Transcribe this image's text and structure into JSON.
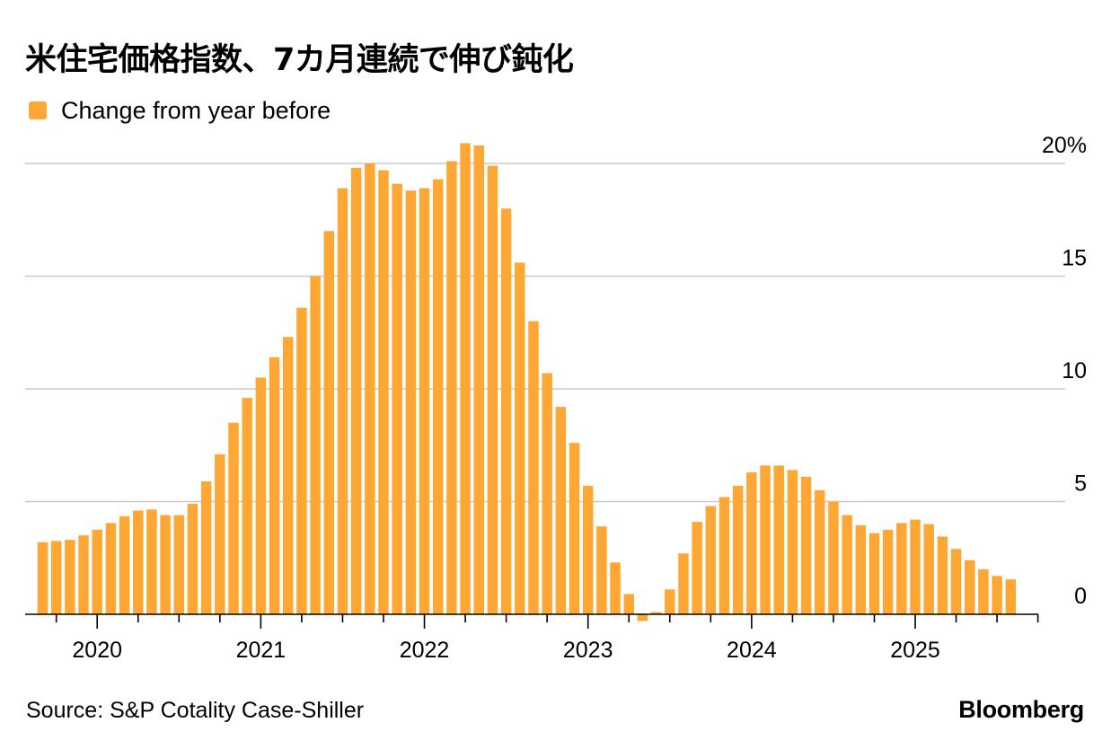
{
  "title": "米住宅価格指数、7カ月連続で伸び鈍化",
  "legend": {
    "label": "Change from year before",
    "color": "#FFA735"
  },
  "footer": {
    "source": "Source: S&P Cotality Case-Shiller",
    "brand": "Bloomberg"
  },
  "chart_data": {
    "type": "bar",
    "series": [
      {
        "name": "Change from year before",
        "color": "#FFA735",
        "values": [
          3.2,
          3.25,
          3.3,
          3.5,
          3.75,
          4.05,
          4.35,
          4.6,
          4.65,
          4.4,
          4.4,
          4.9,
          5.9,
          7.1,
          8.5,
          9.6,
          10.5,
          11.4,
          12.3,
          13.6,
          15.0,
          17.0,
          18.9,
          19.8,
          20.0,
          19.7,
          19.1,
          18.8,
          18.9,
          19.3,
          20.1,
          20.9,
          20.8,
          19.9,
          18.0,
          15.6,
          13.0,
          10.7,
          9.2,
          7.6,
          5.7,
          3.9,
          2.3,
          0.9,
          -0.3,
          0.1,
          1.1,
          2.7,
          4.1,
          4.8,
          5.2,
          5.7,
          6.3,
          6.6,
          6.6,
          6.4,
          6.1,
          5.5,
          5.0,
          4.4,
          3.95,
          3.6,
          3.75,
          4.05,
          4.2,
          4.0,
          3.45,
          2.9,
          2.4,
          2.0,
          1.7,
          1.55
        ]
      }
    ],
    "start": "2019-09",
    "x_tick_labels": [
      "2020",
      "2021",
      "2022",
      "2023",
      "2024",
      "2025"
    ],
    "y_ticks": [
      0,
      5,
      10,
      15,
      20
    ],
    "y_tick_labels": [
      "0",
      "5",
      "10",
      "15",
      "20%"
    ],
    "ylim": [
      -0.5,
      21.5
    ],
    "grid": true,
    "axis_side": "right"
  }
}
